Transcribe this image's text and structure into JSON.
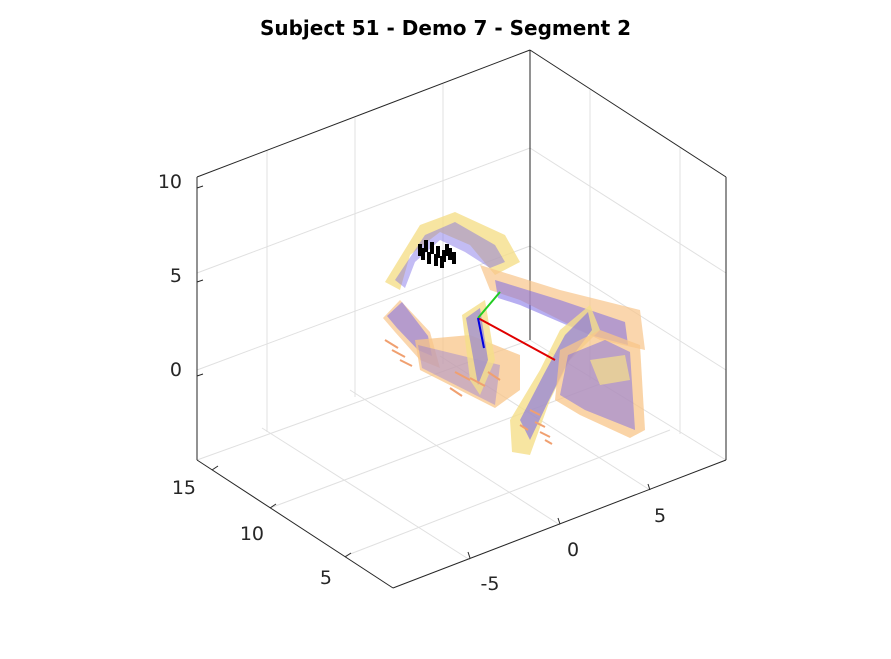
{
  "chart_data": {
    "type": "scatter3d",
    "title": "Subject 51 - Demo 7 - Segment 2",
    "xlabel": "",
    "ylabel": "",
    "zlabel": "",
    "xlim": [
      -9,
      9
    ],
    "ylim": [
      3,
      16
    ],
    "zlim": [
      -5,
      12
    ],
    "x_ticks": [
      "-5",
      "0",
      "5"
    ],
    "y_ticks": [
      "5",
      "10",
      "15"
    ],
    "z_ticks": [
      "0",
      "5",
      "10"
    ],
    "grid": true,
    "colors": {
      "trajectory_bar": "#7b6be6",
      "trajectory_halo": "#f8c58a",
      "trajectory_halo2": "#f5de8a",
      "axis_x": "#e00000",
      "axis_y": "#22cc22",
      "axis_z": "#0000e0",
      "markers": "#000000",
      "arrows": "#f0a070"
    },
    "series": [
      {
        "name": "trajectory",
        "description_points": "swept tube segments"
      },
      {
        "name": "marker cluster",
        "count": 12
      },
      {
        "name": "reference frame",
        "axes": [
          "x",
          "y",
          "z"
        ]
      }
    ]
  }
}
